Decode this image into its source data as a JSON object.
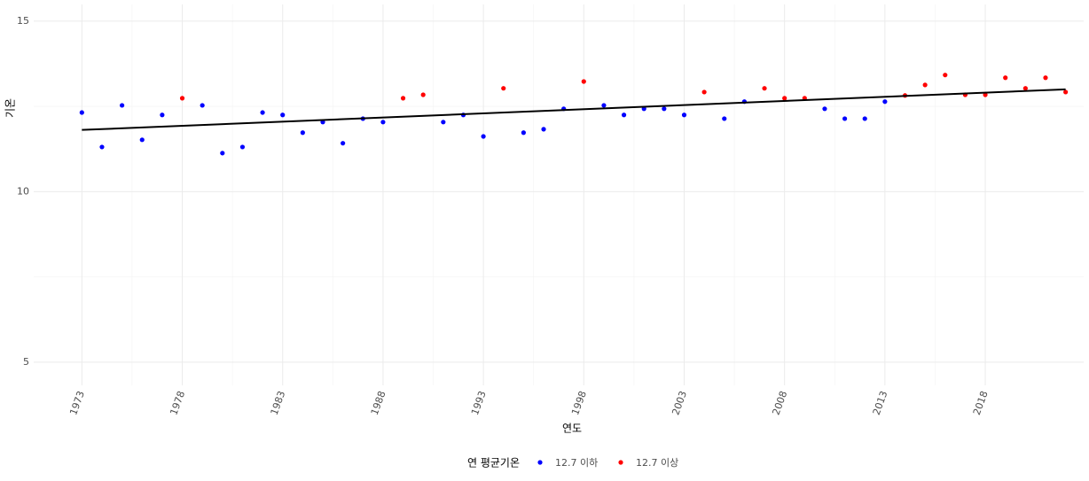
{
  "chart_data": {
    "type": "scatter",
    "x_label": "연도",
    "y_label": "기온",
    "legend_title": "연 평균기온",
    "xlim": [
      1970.6,
      2022.9
    ],
    "ylim": [
      4.32,
      15.49
    ],
    "xticks": [
      1973,
      1978,
      1983,
      1988,
      1993,
      1998,
      2003,
      2008,
      2013,
      2018
    ],
    "yticks": [
      5,
      10,
      15
    ],
    "grid": true,
    "legend_position": "bottom",
    "series": [
      {
        "name": "12.7 이하",
        "color": "#0000ff",
        "x": [
          1973,
          1974,
          1975,
          1976,
          1977,
          1979,
          1980,
          1981,
          1982,
          1983,
          1984,
          1985,
          1986,
          1987,
          1988,
          1991,
          1992,
          1993,
          1995,
          1996,
          1997,
          1999,
          2000,
          2001,
          2002,
          2003,
          2005,
          2006,
          2010,
          2011,
          2012,
          2013
        ],
        "values": [
          12.32,
          11.31,
          12.53,
          11.52,
          12.25,
          12.53,
          11.13,
          11.31,
          12.32,
          12.25,
          11.73,
          12.04,
          11.42,
          12.14,
          12.04,
          12.04,
          12.25,
          11.62,
          11.73,
          11.83,
          12.43,
          12.53,
          12.25,
          12.43,
          12.43,
          12.25,
          12.14,
          12.64,
          12.43,
          12.14,
          12.14,
          12.64
        ]
      },
      {
        "name": "12.7 이상",
        "color": "#ff0000",
        "x": [
          1978,
          1989,
          1990,
          1994,
          1998,
          2004,
          2007,
          2008,
          2009,
          2014,
          2015,
          2016,
          2017,
          2018,
          2019,
          2020,
          2021,
          2022
        ],
        "values": [
          12.74,
          12.74,
          12.84,
          13.03,
          13.23,
          12.92,
          13.03,
          12.74,
          12.74,
          12.82,
          13.13,
          13.42,
          12.84,
          12.84,
          13.34,
          13.03,
          13.34,
          12.92
        ]
      }
    ],
    "trend_line": {
      "color": "#000000",
      "x": [
        1973,
        2022
      ],
      "values": [
        11.81,
        13.0
      ]
    }
  }
}
